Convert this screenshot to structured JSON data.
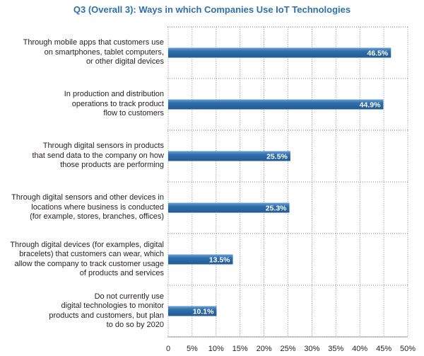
{
  "chart_data": {
    "type": "bar",
    "orientation": "horizontal",
    "title": "Q3 (Overall 3): Ways in which Companies Use IoT Technologies",
    "xlabel": "",
    "ylabel": "",
    "xlim": [
      0,
      50
    ],
    "x_ticks": [
      "0",
      "5%",
      "10%",
      "15%",
      "20%",
      "25%",
      "30%",
      "35%",
      "40%",
      "45%",
      "50%"
    ],
    "grid": true,
    "colors": {
      "bar": "#2f6fad",
      "bar_highlight": "#6a9fd2",
      "grid": "#999999",
      "title": "#2f6fad",
      "text": "#231f20"
    },
    "categories": [
      [
        "Through mobile apps that customers use",
        "on smartphones, tablet computers,",
        "or other digital devices"
      ],
      [
        "In production and distribution",
        "operations to track product",
        "flow to customers"
      ],
      [
        "Through digital sensors in products",
        "that send data to the company on how",
        "those products are performing"
      ],
      [
        "Through digital sensors and other devices in",
        "locations where business is conducted",
        "(for example, stores, branches, offices)"
      ],
      [
        "Through digital devices (for examples, digital",
        "bracelets) that customers can wear, which",
        "allow the company to track customer usage",
        "of products and services"
      ],
      [
        "Do not currently use",
        "digital technologies to monitor",
        "products and customers, but plan",
        "to do so by 2020"
      ]
    ],
    "values": [
      46.5,
      44.9,
      25.5,
      25.3,
      13.5,
      10.1
    ],
    "value_labels": [
      "46.5%",
      "44.9%",
      "25.5%",
      "25.3%",
      "13.5%",
      "10.1%"
    ]
  }
}
